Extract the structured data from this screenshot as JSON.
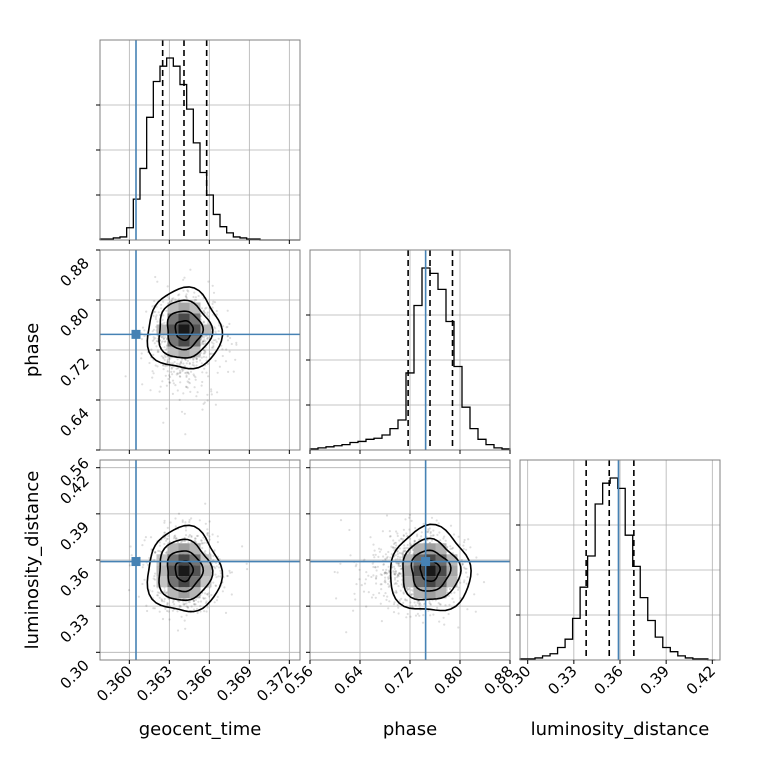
{
  "chart_data": {
    "type": "corner",
    "parameters": [
      "geocent_time",
      "phase",
      "luminosity_distance"
    ],
    "truths": {
      "geocent_time": 0.3605,
      "phase": 0.745,
      "luminosity_distance": 0.359
    },
    "quantiles": {
      "geocent_time": [
        0.3625,
        0.3641,
        0.3658
      ],
      "phase": [
        0.717,
        0.752,
        0.788
      ],
      "luminosity_distance": [
        0.338,
        0.353,
        0.369
      ]
    },
    "ranges": {
      "geocent_time": [
        0.3578,
        0.3728
      ],
      "phase": [
        0.56,
        0.88
      ],
      "luminosity_distance": [
        0.295,
        0.425
      ]
    },
    "ticks": {
      "geocent_time": [
        "0.360",
        "0.363",
        "0.366",
        "0.369",
        "0.372"
      ],
      "phase": [
        "0.56",
        "0.64",
        "0.72",
        "0.80",
        "0.88"
      ],
      "luminosity_distance": [
        "0.30",
        "0.33",
        "0.36",
        "0.39",
        "0.42"
      ]
    },
    "histograms": {
      "geocent_time": [
        1,
        1,
        2,
        3,
        12,
        40,
        70,
        120,
        155,
        170,
        178,
        170,
        152,
        128,
        95,
        66,
        44,
        25,
        13,
        7,
        3,
        2,
        1,
        1,
        0,
        0,
        0,
        0,
        0,
        0
      ],
      "phase": [
        1,
        2,
        3,
        4,
        5,
        7,
        8,
        10,
        11,
        14,
        20,
        28,
        72,
        135,
        170,
        165,
        150,
        120,
        78,
        40,
        20,
        10,
        5,
        2,
        1
      ],
      "luminosity_distance": [
        1,
        1,
        2,
        4,
        6,
        12,
        20,
        40,
        70,
        100,
        150,
        170,
        175,
        165,
        120,
        90,
        60,
        38,
        22,
        12,
        8,
        4,
        2,
        1,
        1,
        0
      ]
    },
    "hist_bins": {
      "geocent_time": [
        0.3578,
        0.3728
      ],
      "phase": [
        0.56,
        0.88
      ],
      "luminosity_distance": [
        0.295,
        0.422
      ]
    },
    "grid": true,
    "contour_levels": [
      "0.118",
      "0.393",
      "0.675",
      "0.865"
    ]
  }
}
